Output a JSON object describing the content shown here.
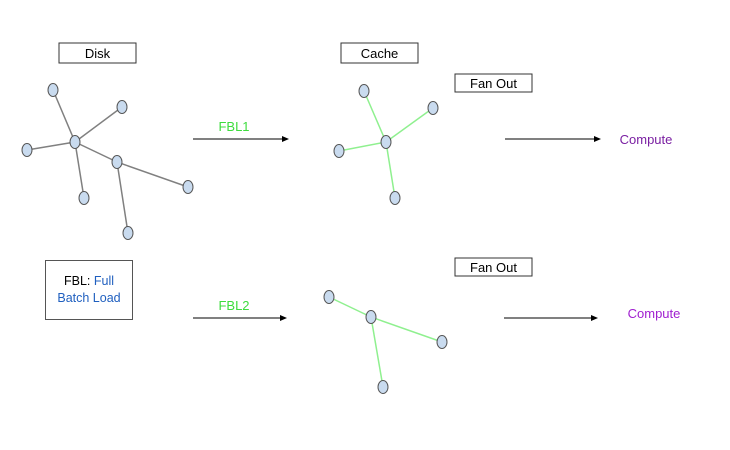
{
  "labels": {
    "disk": "Disk",
    "cache": "Cache",
    "fan_out_top": "Fan Out",
    "fan_out_bottom": "Fan Out",
    "fbl1": "FBL1",
    "fbl2": "FBL2",
    "compute_top": "Compute",
    "compute_bottom": "Compute"
  },
  "legend": {
    "prefix": "FBL:",
    "full": "Full",
    "batch_load": "Batch Load"
  },
  "colors": {
    "node_fill": "#c9dbef",
    "node_stroke": "#555555",
    "disk_edge": "#808080",
    "cache_edge": "#8ff08f",
    "fbl_label": "#3ddc3d",
    "compute_top": "#7a1fa2",
    "compute_bottom": "#a020d0",
    "legend_highlight": "#1f5fbf"
  }
}
